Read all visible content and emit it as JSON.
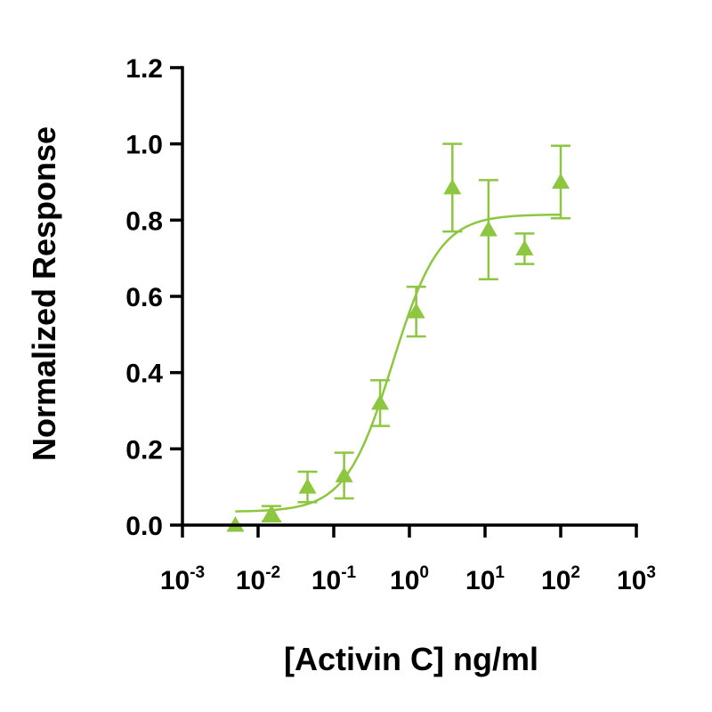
{
  "chart_data": {
    "type": "scatter",
    "title": "",
    "xlabel": "[Activin C] ng/ml",
    "ylabel": "Normalized Response",
    "x_scale": "log",
    "xlim": [
      0.001,
      1000
    ],
    "ylim": [
      0,
      1.2
    ],
    "x_ticks": [
      {
        "base": "10",
        "exp": "-3",
        "value": 0.001
      },
      {
        "base": "10",
        "exp": "-2",
        "value": 0.01
      },
      {
        "base": "10",
        "exp": "-1",
        "value": 0.1
      },
      {
        "base": "10",
        "exp": "0",
        "value": 1
      },
      {
        "base": "10",
        "exp": "1",
        "value": 10
      },
      {
        "base": "10",
        "exp": "2",
        "value": 100
      },
      {
        "base": "10",
        "exp": "3",
        "value": 1000
      }
    ],
    "y_ticks": [
      {
        "label": "0.0",
        "value": 0
      },
      {
        "label": "0.2",
        "value": 0.2
      },
      {
        "label": "0.4",
        "value": 0.4
      },
      {
        "label": "0.6",
        "value": 0.6
      },
      {
        "label": "0.8",
        "value": 0.8
      },
      {
        "label": "1.0",
        "value": 1.0
      },
      {
        "label": "1.2",
        "value": 1.2
      }
    ],
    "grid": false,
    "color": "#8dc63f",
    "marker": "triangle",
    "points": [
      {
        "x": 0.005,
        "y": 0.0,
        "err": 0.0
      },
      {
        "x": 0.015,
        "y": 0.03,
        "err": 0.02
      },
      {
        "x": 0.045,
        "y": 0.1,
        "err": 0.04
      },
      {
        "x": 0.137,
        "y": 0.13,
        "err": 0.06
      },
      {
        "x": 0.41,
        "y": 0.32,
        "err": 0.06
      },
      {
        "x": 1.23,
        "y": 0.56,
        "err": 0.065
      },
      {
        "x": 3.7,
        "y": 0.885,
        "err": 0.115
      },
      {
        "x": 11.1,
        "y": 0.775,
        "err": 0.13
      },
      {
        "x": 33.3,
        "y": 0.725,
        "err": 0.04
      },
      {
        "x": 100,
        "y": 0.9,
        "err": 0.095
      }
    ],
    "fit": {
      "model": "4PL",
      "bottom": 0.035,
      "top": 0.815,
      "ec50": 0.6,
      "hill": 1.4,
      "x_range": [
        0.005,
        100
      ]
    }
  }
}
